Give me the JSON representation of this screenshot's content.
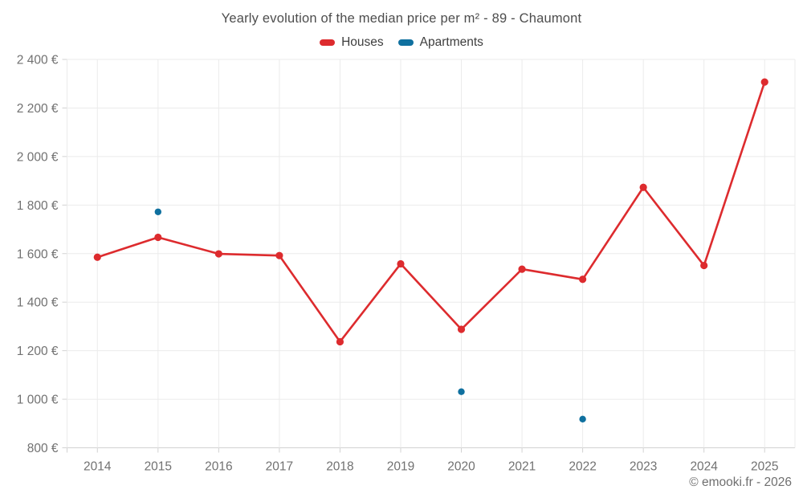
{
  "footer": {
    "text": "© emooki.fr - 2026"
  },
  "colors": {
    "houses": "#dd2b2e",
    "apartments": "#0f709f",
    "gridline": "#ebebeb",
    "axis_line": "#d2d2d2",
    "axis_label": "#717171",
    "title_text": "#4d4d4d",
    "legend_text": "#3e3e3e",
    "footer_text": "#6f6f6f"
  },
  "chart_data": {
    "type": "line",
    "title": "Yearly evolution of the median price per m² - 89 - Chaumont",
    "xlabel": "",
    "ylabel": "",
    "x": [
      "2014",
      "2015",
      "2016",
      "2017",
      "2018",
      "2019",
      "2020",
      "2021",
      "2022",
      "2023",
      "2024",
      "2025"
    ],
    "series": [
      {
        "name": "Houses",
        "mode": "line+markers",
        "color": "#dd2b2e",
        "values": [
          1585,
          1667,
          1599,
          1592,
          1237,
          1558,
          1288,
          1536,
          1494,
          1873,
          1551,
          2307
        ]
      },
      {
        "name": "Apartments",
        "mode": "markers",
        "color": "#0f709f",
        "values": [
          null,
          1772,
          null,
          null,
          null,
          null,
          1031,
          null,
          918,
          null,
          null,
          null
        ]
      }
    ],
    "ylim": [
      800,
      2400
    ],
    "ytick_step": 200,
    "yunit": "€",
    "grid": true,
    "legend_position": "top"
  }
}
